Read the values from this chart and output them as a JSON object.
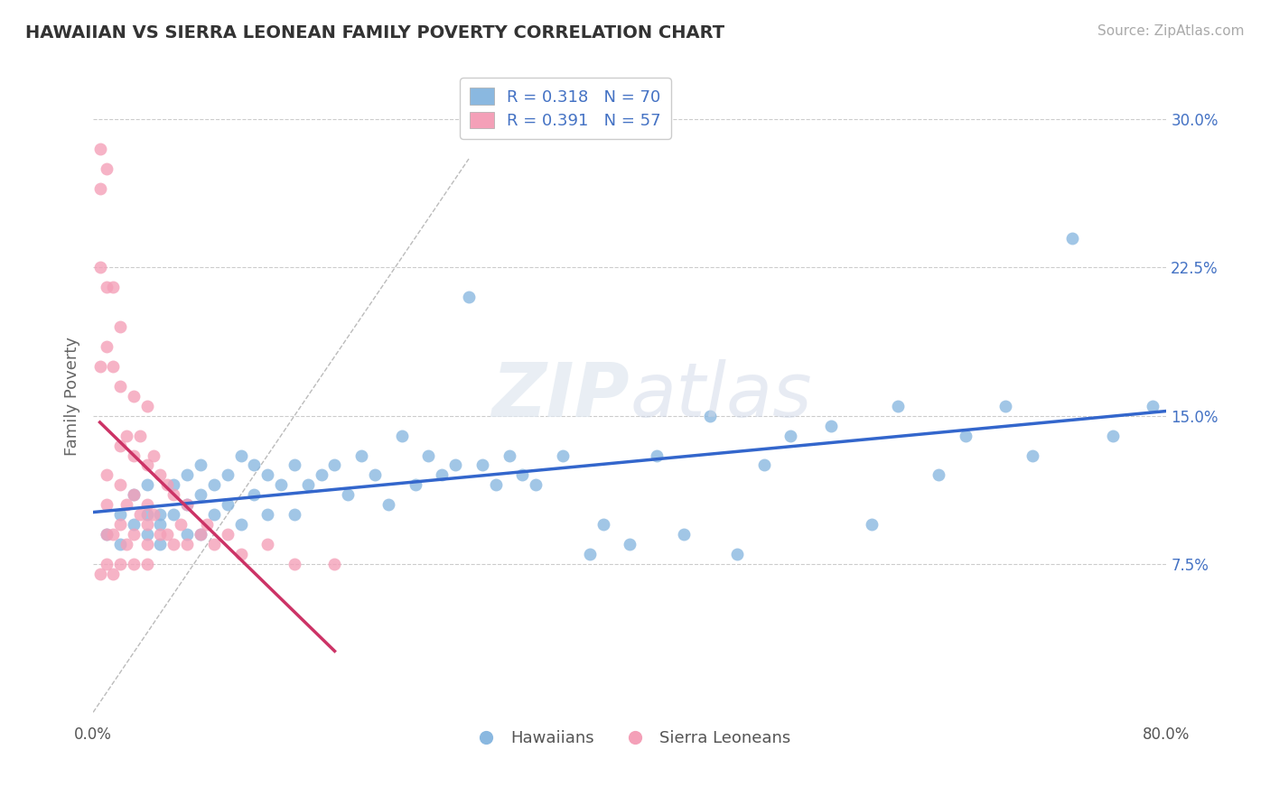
{
  "title": "HAWAIIAN VS SIERRA LEONEAN FAMILY POVERTY CORRELATION CHART",
  "source": "Source: ZipAtlas.com",
  "ylabel": "Family Poverty",
  "xlim": [
    0.0,
    0.8
  ],
  "ylim": [
    -0.005,
    0.325
  ],
  "yticks": [
    0.075,
    0.15,
    0.225,
    0.3
  ],
  "yticklabels": [
    "7.5%",
    "15.0%",
    "22.5%",
    "30.0%"
  ],
  "hawaiian_color": "#8ab8e0",
  "sierra_color": "#f4a0b8",
  "hawaiian_line_color": "#3366cc",
  "sierra_line_color": "#cc3366",
  "R_hawaiian": 0.318,
  "N_hawaiian": 70,
  "R_sierra": 0.391,
  "N_sierra": 57,
  "legend_label_hawaiian": "Hawaiians",
  "legend_label_sierra": "Sierra Leoneans",
  "watermark_zip": "ZIP",
  "watermark_atlas": "atlas",
  "background_color": "#ffffff",
  "grid_color": "#cccccc",
  "hawaiian_x": [
    0.01,
    0.02,
    0.02,
    0.03,
    0.03,
    0.04,
    0.04,
    0.04,
    0.05,
    0.05,
    0.05,
    0.06,
    0.06,
    0.07,
    0.07,
    0.07,
    0.08,
    0.08,
    0.08,
    0.09,
    0.09,
    0.1,
    0.1,
    0.11,
    0.11,
    0.12,
    0.12,
    0.13,
    0.13,
    0.14,
    0.15,
    0.15,
    0.16,
    0.17,
    0.18,
    0.19,
    0.2,
    0.21,
    0.22,
    0.23,
    0.24,
    0.25,
    0.26,
    0.27,
    0.28,
    0.29,
    0.3,
    0.31,
    0.32,
    0.33,
    0.35,
    0.37,
    0.38,
    0.4,
    0.42,
    0.44,
    0.46,
    0.48,
    0.5,
    0.52,
    0.55,
    0.58,
    0.6,
    0.63,
    0.65,
    0.68,
    0.7,
    0.73,
    0.76,
    0.79
  ],
  "hawaiian_y": [
    0.09,
    0.1,
    0.085,
    0.095,
    0.11,
    0.09,
    0.1,
    0.115,
    0.1,
    0.085,
    0.095,
    0.115,
    0.1,
    0.09,
    0.105,
    0.12,
    0.09,
    0.11,
    0.125,
    0.1,
    0.115,
    0.105,
    0.12,
    0.095,
    0.13,
    0.11,
    0.125,
    0.1,
    0.12,
    0.115,
    0.1,
    0.125,
    0.115,
    0.12,
    0.125,
    0.11,
    0.13,
    0.12,
    0.105,
    0.14,
    0.115,
    0.13,
    0.12,
    0.125,
    0.21,
    0.125,
    0.115,
    0.13,
    0.12,
    0.115,
    0.13,
    0.08,
    0.095,
    0.085,
    0.13,
    0.09,
    0.15,
    0.08,
    0.125,
    0.14,
    0.145,
    0.095,
    0.155,
    0.12,
    0.14,
    0.155,
    0.13,
    0.24,
    0.14,
    0.155
  ],
  "sierra_x": [
    0.005,
    0.005,
    0.005,
    0.005,
    0.005,
    0.01,
    0.01,
    0.01,
    0.01,
    0.01,
    0.01,
    0.01,
    0.015,
    0.015,
    0.015,
    0.015,
    0.02,
    0.02,
    0.02,
    0.02,
    0.02,
    0.02,
    0.025,
    0.025,
    0.025,
    0.03,
    0.03,
    0.03,
    0.03,
    0.03,
    0.035,
    0.035,
    0.04,
    0.04,
    0.04,
    0.04,
    0.04,
    0.04,
    0.045,
    0.045,
    0.05,
    0.05,
    0.055,
    0.055,
    0.06,
    0.06,
    0.065,
    0.07,
    0.07,
    0.08,
    0.085,
    0.09,
    0.1,
    0.11,
    0.13,
    0.15,
    0.18
  ],
  "sierra_y": [
    0.285,
    0.265,
    0.225,
    0.175,
    0.07,
    0.275,
    0.215,
    0.185,
    0.12,
    0.105,
    0.09,
    0.075,
    0.215,
    0.175,
    0.09,
    0.07,
    0.195,
    0.165,
    0.135,
    0.115,
    0.095,
    0.075,
    0.14,
    0.105,
    0.085,
    0.16,
    0.13,
    0.11,
    0.09,
    0.075,
    0.14,
    0.1,
    0.155,
    0.125,
    0.105,
    0.095,
    0.085,
    0.075,
    0.13,
    0.1,
    0.12,
    0.09,
    0.115,
    0.09,
    0.11,
    0.085,
    0.095,
    0.105,
    0.085,
    0.09,
    0.095,
    0.085,
    0.09,
    0.08,
    0.085,
    0.075,
    0.075
  ]
}
